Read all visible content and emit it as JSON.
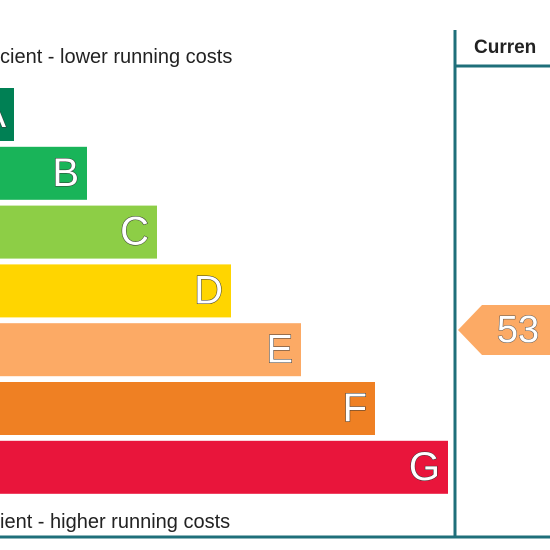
{
  "top_label": "cient - lower running costs",
  "bottom_label": "ient - higher running costs",
  "bands": [
    {
      "letter": "A",
      "color": "#008054"
    },
    {
      "letter": "B",
      "color": "#19b459"
    },
    {
      "letter": "C",
      "color": "#8dce46"
    },
    {
      "letter": "D",
      "color": "#ffd500"
    },
    {
      "letter": "E",
      "color": "#fcaa65"
    },
    {
      "letter": "F",
      "color": "#ef8023"
    },
    {
      "letter": "G",
      "color": "#e9153b"
    }
  ],
  "current": {
    "header": "Curren",
    "value": "53",
    "color": "#fcaa65"
  }
}
